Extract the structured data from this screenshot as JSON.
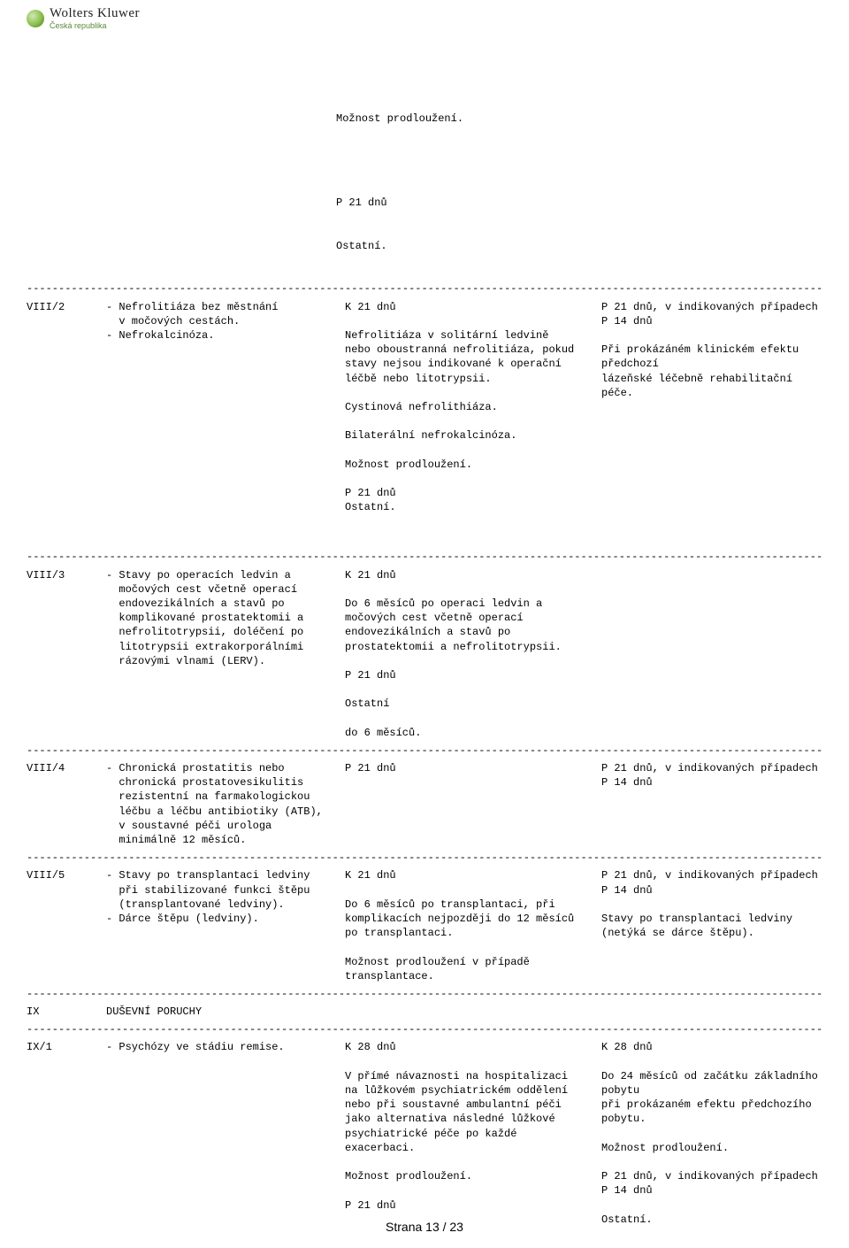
{
  "brand": {
    "top": "Wolters Kluwer",
    "sub": "Česká republika"
  },
  "block_top": {
    "l1": "Možnost prodloužení.",
    "l2": "P 21 dnů",
    "l3": "Ostatní."
  },
  "viii2": {
    "code": "VIII/2",
    "c2": "- Nefrolitiáza bez městnání\n  v močových cestách.\n- Nefrokalcinóza.",
    "c3": "K 21 dnů\n\nNefrolitiáza v solitární ledvině\nnebo oboustranná nefrolitiáza, pokud\nstavy nejsou indikované k operační\nléčbě nebo litotrypsii.\n\nCystinová nefrolithiáza.\n\nBilaterální nefrokalcinóza.\n\nMožnost prodloužení.\n\nP 21 dnů\nOstatní.",
    "c4": "P 21 dnů, v indikovaných případech P 14 dnů\n\nPři prokázáném klinickém efektu předchozí\nlázeňské léčebně rehabilitační péče."
  },
  "viii3": {
    "code": "VIII/3",
    "c2": "- Stavy po operacích ledvin a\n  močových cest včetně operací\n  endovezikálních a stavů po\n  komplikované prostatektomii a\n  nefrolitotrypsii, doléčení po\n  litotrypsii extrakorporálními\n  rázovými vlnami (LERV).",
    "c3": "K 21 dnů\n\nDo 6 měsíců po operaci ledvin a\nmočových cest včetně operací\nendovezikálních a stavů po\nprostatektomii a nefrolitotrypsii.\n\nP 21 dnů\n\nOstatní\n\ndo 6 měsíců."
  },
  "viii4": {
    "code": "VIII/4",
    "c2": "- Chronická prostatitis nebo\n  chronická prostatovesikulitis\n  rezistentní na farmakologickou\n  léčbu a léčbu antibiotiky (ATB),\n  v soustavné péči urologa\n  minimálně 12 měsíců.",
    "c3": "P 21 dnů",
    "c4": "P 21 dnů, v indikovaných případech P 14 dnů"
  },
  "viii5": {
    "code": "VIII/5",
    "c2": "- Stavy po transplantaci ledviny\n  při stabilizované funkci štěpu\n  (transplantované ledviny).\n- Dárce štěpu (ledviny).",
    "c3": "K 21 dnů\n\nDo 6 měsíců po transplantaci, při\nkomplikacích nejpozději do 12 měsíců\npo transplantaci.\n\nMožnost prodloužení v případě\ntransplantace.",
    "c4": "P 21 dnů, v indikovaných případech P 14 dnů\n\nStavy po transplantaci ledviny\n(netýká se dárce štěpu)."
  },
  "ix": {
    "code": "IX",
    "c2": "DUŠEVNÍ PORUCHY"
  },
  "ix1": {
    "code": "IX/1",
    "c2": "- Psychózy ve stádiu remise.",
    "c3": "K 28 dnů\n\nV přímé návaznosti na hospitalizaci\nna lůžkovém psychiatrickém oddělení\nnebo při soustavné ambulantní péči\njako alternativa následné lůžkové\npsychiatrické péče po každé exacerbaci.\n\nMožnost prodloužení.\n\nP 21 dnů",
    "c4": "K 28 dnů\n\nDo 24 měsíců od začátku základního pobytu\npři prokázaném efektu předchozího pobytu.\n\nMožnost prodloužení.\n\nP 21 dnů, v indikovaných případech P 14 dnů\n\nOstatní."
  },
  "footer": "Strana 13 / 23",
  "dash": "--------------------------------------------------------------------------------------------------------------------------------------------------------"
}
